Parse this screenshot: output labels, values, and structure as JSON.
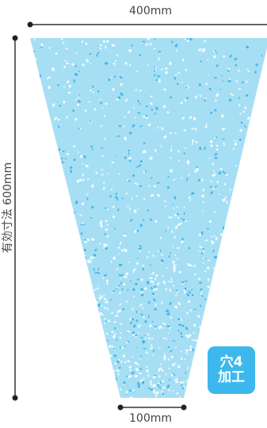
{
  "dimensions": {
    "top_width": "400mm",
    "bottom_width": "100mm",
    "side_length": "有効寸法 600mm"
  },
  "badge": {
    "line1": "穴4",
    "line2": "加工"
  },
  "colors": {
    "bag_fill": "#a6dff4",
    "speckle_white": "#ffffff",
    "speckle_blue": "#2aa9e6",
    "badge_bg": "#3db8ec",
    "dim_line": "#333333"
  },
  "icons": {
    "dimension_endpoint": "dot-icon"
  }
}
